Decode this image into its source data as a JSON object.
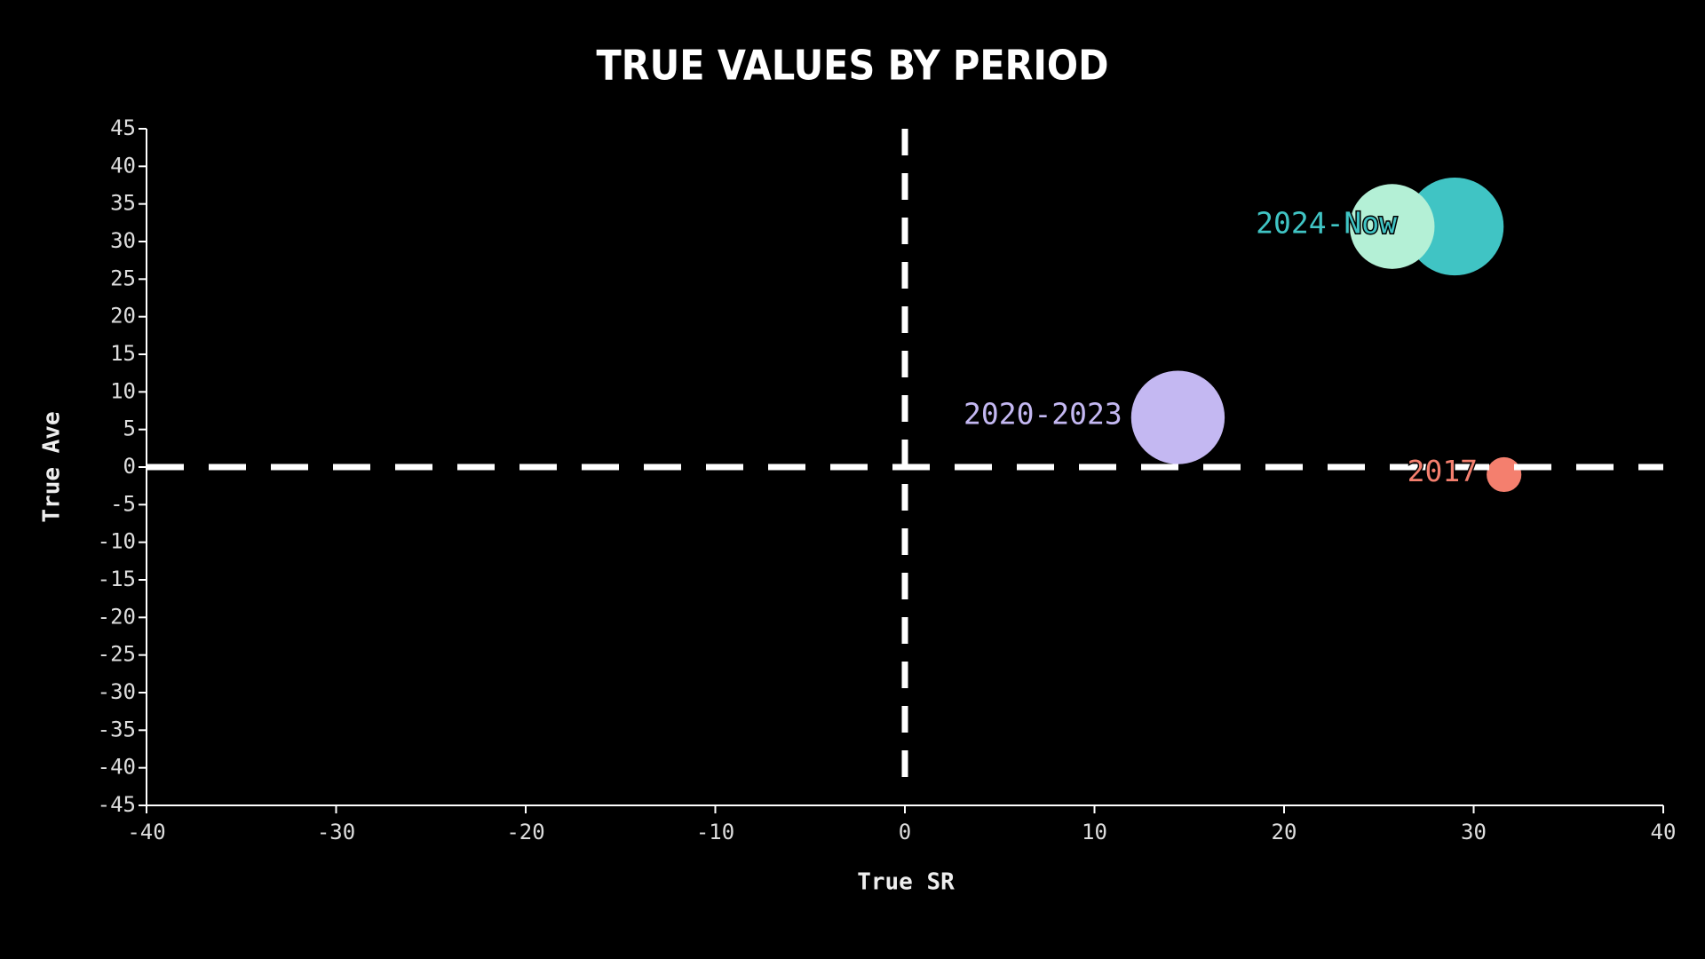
{
  "chart_data": {
    "type": "scatter",
    "title": "TRUE VALUES BY PERIOD",
    "xlabel": "True SR",
    "ylabel": "True Ave",
    "xlim": [
      -40,
      40
    ],
    "xticks": [
      -40,
      -30,
      -20,
      -10,
      0,
      10,
      20,
      30,
      40
    ],
    "ylim": [
      -45,
      45
    ],
    "yticks": [
      -45,
      -40,
      -35,
      -30,
      -25,
      -20,
      -15,
      -10,
      -5,
      0,
      5,
      10,
      15,
      20,
      25,
      30,
      35,
      40,
      45
    ],
    "reference_lines": {
      "x": 0,
      "y": 0
    },
    "series": [
      {
        "name": "2024-Now",
        "color": "#40c4c4",
        "x": [
          29
        ],
        "values": [
          32
        ],
        "sizes": [
          45
        ]
      },
      {
        "color": "#b4f0d6",
        "x": [
          25.7
        ],
        "values": [
          32
        ],
        "sizes": [
          39
        ]
      },
      {
        "name": "2020-2023",
        "color": "#c4b8f2",
        "x": [
          14.4
        ],
        "values": [
          6.6
        ],
        "sizes": [
          43
        ]
      },
      {
        "name": "2017",
        "color": "#f47f6e",
        "x": [
          31.6
        ],
        "values": [
          -1
        ],
        "sizes": [
          16
        ]
      }
    ]
  }
}
